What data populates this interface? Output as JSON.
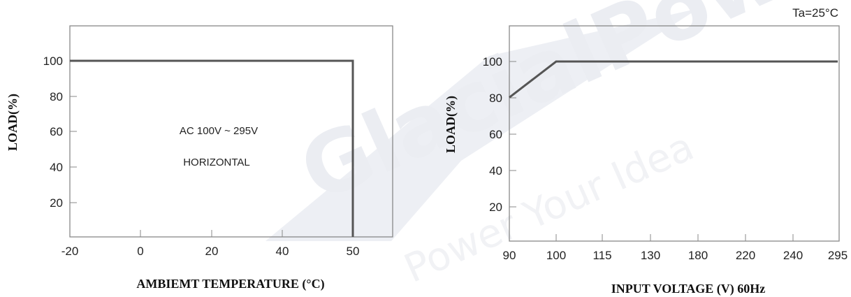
{
  "watermark": {
    "brand": "GlacialPower",
    "slogan": "Power Your Idea",
    "color": "#e9ebf1"
  },
  "chart_data": [
    {
      "type": "line",
      "title": "",
      "xlabel": "AMBIEMT TEMPERATURE (°C)",
      "ylabel": "LOAD(%)",
      "x_ticks": [
        "-20",
        "0",
        "20",
        "40",
        "50"
      ],
      "y_ticks": [
        "20",
        "40",
        "60",
        "80",
        "100"
      ],
      "xlim": [
        -20,
        56
      ],
      "ylim": [
        0,
        120
      ],
      "grid": false,
      "series": [
        {
          "values": [
            {
              "x": -20,
              "y": 100
            },
            {
              "x": 50,
              "y": 100
            },
            {
              "x": 50,
              "y": 0
            }
          ]
        }
      ],
      "annotations": [
        "AC 100V ~ 295V",
        "HORIZONTAL"
      ],
      "line_color": "#555555"
    },
    {
      "type": "line",
      "title": "",
      "corner_note": "Ta=25°C",
      "xlabel": "INPUT VOLTAGE (V) 60Hz",
      "ylabel": "LOAD(%)",
      "x_ticks": [
        "90",
        "100",
        "115",
        "130",
        "180",
        "220",
        "240",
        "295"
      ],
      "y_ticks": [
        "20",
        "40",
        "60",
        "80",
        "100"
      ],
      "ylim": [
        0,
        120
      ],
      "grid": false,
      "series": [
        {
          "values": [
            {
              "x": 90,
              "y": 80
            },
            {
              "x": 100,
              "y": 100
            },
            {
              "x": 295,
              "y": 100
            }
          ]
        }
      ],
      "line_color": "#555555"
    }
  ]
}
